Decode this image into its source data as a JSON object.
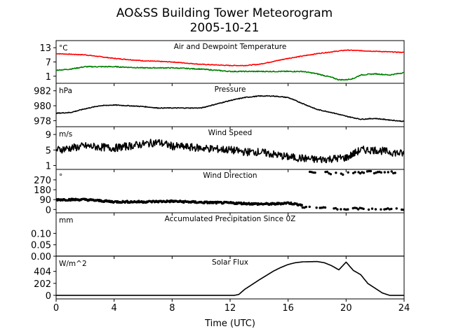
{
  "figure": {
    "title_line1": "AO&SS Building Tower Meteorogram",
    "title_line2": "2005-10-21",
    "xlabel": "Time (UTC)"
  },
  "chart_data": [
    {
      "type": "line",
      "title": "Air and Dewpoint Temperature",
      "unit": "°C",
      "yticks": [
        1,
        7,
        13
      ],
      "ylim": [
        -2,
        16
      ],
      "xlim": [
        0,
        24
      ],
      "xticks": [
        0,
        4,
        8,
        12,
        16,
        20,
        24
      ],
      "series": [
        {
          "color": "#ff0000",
          "noise": 0.15,
          "x": [
            0,
            2,
            4,
            6,
            8,
            10,
            12,
            13,
            14,
            16,
            18,
            20,
            22,
            24
          ],
          "y": [
            10.5,
            10,
            8.5,
            7.5,
            7,
            6,
            5.5,
            5.5,
            6,
            8.5,
            10.5,
            12,
            11.5,
            11
          ]
        },
        {
          "color": "#008000",
          "noise": 0.2,
          "x": [
            0,
            1,
            2,
            4,
            6,
            8,
            10,
            12,
            14,
            16,
            17,
            18,
            19,
            19.5,
            20,
            20.5,
            21,
            22,
            23,
            24
          ],
          "y": [
            3.5,
            4,
            5,
            5,
            4.5,
            4.5,
            4,
            3,
            3,
            3,
            3,
            2,
            0.5,
            -0.5,
            -0.5,
            0,
            1.5,
            2,
            1.5,
            2.5
          ]
        }
      ]
    },
    {
      "type": "line",
      "title": "Pressure",
      "unit": "hPa",
      "yticks": [
        978,
        980,
        982
      ],
      "ylim": [
        977.2,
        983
      ],
      "series": [
        {
          "color": "#000000",
          "noise": 0.05,
          "x": [
            0,
            1,
            2,
            3,
            4,
            5,
            6,
            7,
            8,
            10,
            11,
            12,
            13,
            14,
            15,
            16,
            17,
            18,
            19,
            20,
            21,
            22,
            23,
            24
          ],
          "y": [
            979,
            979.1,
            979.6,
            980,
            980.1,
            980,
            979.9,
            979.7,
            979.7,
            979.7,
            980.2,
            980.7,
            981.1,
            981.3,
            981.3,
            981.1,
            980.3,
            979.5,
            979.1,
            978.6,
            978.2,
            978.3,
            978.1,
            977.9
          ]
        }
      ]
    },
    {
      "type": "line",
      "title": "Wind Speed",
      "unit": "m/s",
      "yticks": [
        1,
        5,
        9
      ],
      "ylim": [
        0,
        11
      ],
      "series": [
        {
          "color": "#000000",
          "noise": 1.0,
          "x": [
            0,
            2,
            4,
            6,
            7,
            8,
            10,
            12,
            13,
            14,
            16,
            18,
            20,
            21,
            22,
            24
          ],
          "y": [
            5,
            6,
            5.5,
            6.5,
            7,
            6,
            5.5,
            5,
            4.5,
            4.5,
            3.2,
            2.5,
            3,
            5,
            5,
            4
          ]
        }
      ]
    },
    {
      "type": "scatter",
      "title": "Wind Direction",
      "unit": "°",
      "yticks": [
        0,
        90,
        180,
        270
      ],
      "ylim": [
        -30,
        365
      ],
      "series": [
        {
          "color": "#000000",
          "noise": 8,
          "x": [
            0,
            2,
            4,
            6,
            8,
            10,
            12,
            14,
            15,
            16,
            17
          ],
          "y": [
            90,
            90,
            70,
            70,
            75,
            65,
            60,
            50,
            50,
            60,
            40
          ]
        },
        {
          "color": "#000000",
          "noise": 8,
          "sparse": true,
          "x": [
            17,
            18,
            19,
            20,
            21,
            22,
            23,
            24
          ],
          "y": [
            20,
            15,
            10,
            5,
            10,
            5,
            5,
            5
          ]
        },
        {
          "color": "#000000",
          "noise": 10,
          "sparse": true,
          "x": [
            17.5,
            18.5,
            19.5,
            20.5,
            21.5,
            22.5,
            23.5
          ],
          "y": [
            340,
            335,
            325,
            330,
            340,
            335,
            340
          ]
        }
      ]
    },
    {
      "type": "line",
      "title": "Accumulated Precipitation Since 0Z",
      "unit": "mm",
      "yticks": [
        0.0,
        0.05,
        0.1
      ],
      "ytick_labels": [
        "0.00",
        "0.05",
        "0.10"
      ],
      "ylim": [
        0,
        0.19
      ],
      "series": [
        {
          "color": "#000000",
          "noise": 0,
          "x": [
            0,
            24
          ],
          "y": [
            0,
            0
          ]
        }
      ]
    },
    {
      "type": "line",
      "title": "Solar Flux",
      "unit": "W/m^2",
      "yticks": [
        0,
        202,
        404
      ],
      "ylim": [
        -60,
        660
      ],
      "series": [
        {
          "color": "#000000",
          "noise": 0,
          "x": [
            0,
            12.3,
            12.6,
            13,
            14,
            15,
            15.5,
            16,
            16.5,
            17,
            18,
            18.5,
            19,
            19.5,
            20,
            20.5,
            21,
            21.5,
            22,
            22.5,
            23,
            24
          ],
          "y": [
            0,
            0,
            15,
            100,
            260,
            410,
            470,
            520,
            550,
            565,
            570,
            550,
            500,
            430,
            560,
            420,
            350,
            200,
            120,
            40,
            0,
            0
          ]
        }
      ]
    }
  ]
}
